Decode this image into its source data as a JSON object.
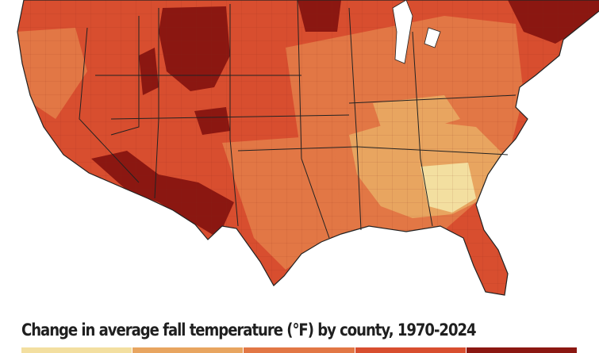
{
  "title": "Change in average fall temperature (°F) by county, 1970-2024",
  "legend": {
    "colors": [
      "#f3dfa0",
      "#e8a560",
      "#e27745",
      "#d84e2f",
      "#8b1711"
    ]
  },
  "icons": {
    "map": "us-county-choropleth"
  }
}
